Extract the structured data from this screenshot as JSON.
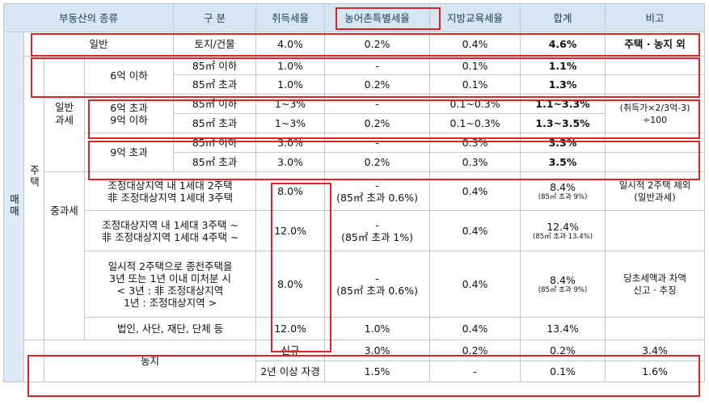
{
  "header": {
    "type": "부동산의 종류",
    "category": "구 분",
    "acq_tax": "취득세율",
    "rural_tax": "농어촌특별세율",
    "local_edu_tax": "지방교육세율",
    "total": "합계",
    "note": "비고"
  },
  "side": {
    "trade": "매매",
    "housing": "주택",
    "general_tax": "일반과세",
    "heavy_tax": "중과세",
    "farmland": "농지"
  },
  "general": {
    "type": "일반",
    "category": "토지/건물",
    "acq": "4.0%",
    "rural": "0.2%",
    "edu": "0.4%",
    "total": "4.6%",
    "note": "주택 · 농지 외"
  },
  "price_groups": [
    {
      "label1": "6억 이하",
      "label2": "",
      "rows": [
        {
          "area": "85㎡ 이하",
          "acq": "1.0%",
          "rural": "-",
          "edu": "0.1%",
          "total": "1.1%"
        },
        {
          "area": "85㎡ 초과",
          "acq": "1.0%",
          "rural": "0.2%",
          "edu": "0.1%",
          "total": "1.3%"
        }
      ]
    },
    {
      "label1": "6억 초과",
      "label2": "9억 이하",
      "rows": [
        {
          "area": "85㎡ 이하",
          "acq": "1~3%",
          "rural": "-",
          "edu": "0.1~0.3%",
          "total": "1.1~3.3%"
        },
        {
          "area": "85㎡ 초과",
          "acq": "1~3%",
          "rural": "0.2%",
          "edu": "0.1~0.3%",
          "total": "1.3~3.5%"
        }
      ]
    },
    {
      "label1": "9억 초과",
      "label2": "",
      "rows": [
        {
          "area": "85㎡ 이하",
          "acq": "3.0%",
          "rural": "-",
          "edu": "0.3%",
          "total": "3.3%"
        },
        {
          "area": "85㎡ 초과",
          "acq": "3.0%",
          "rural": "0.2%",
          "edu": "0.3%",
          "total": "3.5%"
        }
      ]
    }
  ],
  "general_note_1": "(취득가×2/3억-3)",
  "general_note_2": "÷100",
  "heavy_rows": [
    {
      "desc": [
        "조정대상지역 내 1세대 2주택",
        "非 조정대상지역 1세대 3주택"
      ],
      "acq": "8.0%",
      "rural1": "-",
      "rural2": "(85㎡ 초과 0.6%)",
      "edu": "0.4%",
      "total": "8.4%",
      "total_sub": "(85㎡ 초과 9%)",
      "note": [
        "일시적 2주택 제외",
        "(일반과세)"
      ]
    },
    {
      "desc": [
        "조정대상지역 내 1세대 3주택 ~",
        "非 조정대상지역 1세대 4주택 ~"
      ],
      "acq": "12.0%",
      "rural1": "-",
      "rural2": "(85㎡ 초과 1%)",
      "edu": "0.4%",
      "total": "12.4%",
      "total_sub": "(85㎡ 초과 13.4%)",
      "note": []
    },
    {
      "desc": [
        "일시적 2주택으로 종전주택을",
        "3년 또는 1년 이내 미처분 시",
        "< 3년 : 非 조정대상지역",
        "1년 : 조정대상지역 >"
      ],
      "acq": "8.0%",
      "rural1": "-",
      "rural2": "(85㎡ 초과 0.6%)",
      "edu": "0.4%",
      "total": "8.4%",
      "total_sub": "(85㎡ 초과 9%)",
      "note": [
        "당초세액과 차액",
        "신고 · 추징"
      ]
    },
    {
      "desc": [
        "법인, 사단, 재단, 단체 등"
      ],
      "acq": "12.0%",
      "rural1": "1.0%",
      "rural2": "",
      "edu": "0.4%",
      "total": "13.4%",
      "total_sub": "",
      "note": []
    }
  ],
  "farmland": [
    {
      "category": "신규",
      "acq": "3.0%",
      "rural": "0.2%",
      "edu": "0.2%",
      "total": "3.4%"
    },
    {
      "category": "2년 이상 자경",
      "acq": "1.5%",
      "rural": "-",
      "edu": "0.1%",
      "total": "1.6%"
    }
  ]
}
